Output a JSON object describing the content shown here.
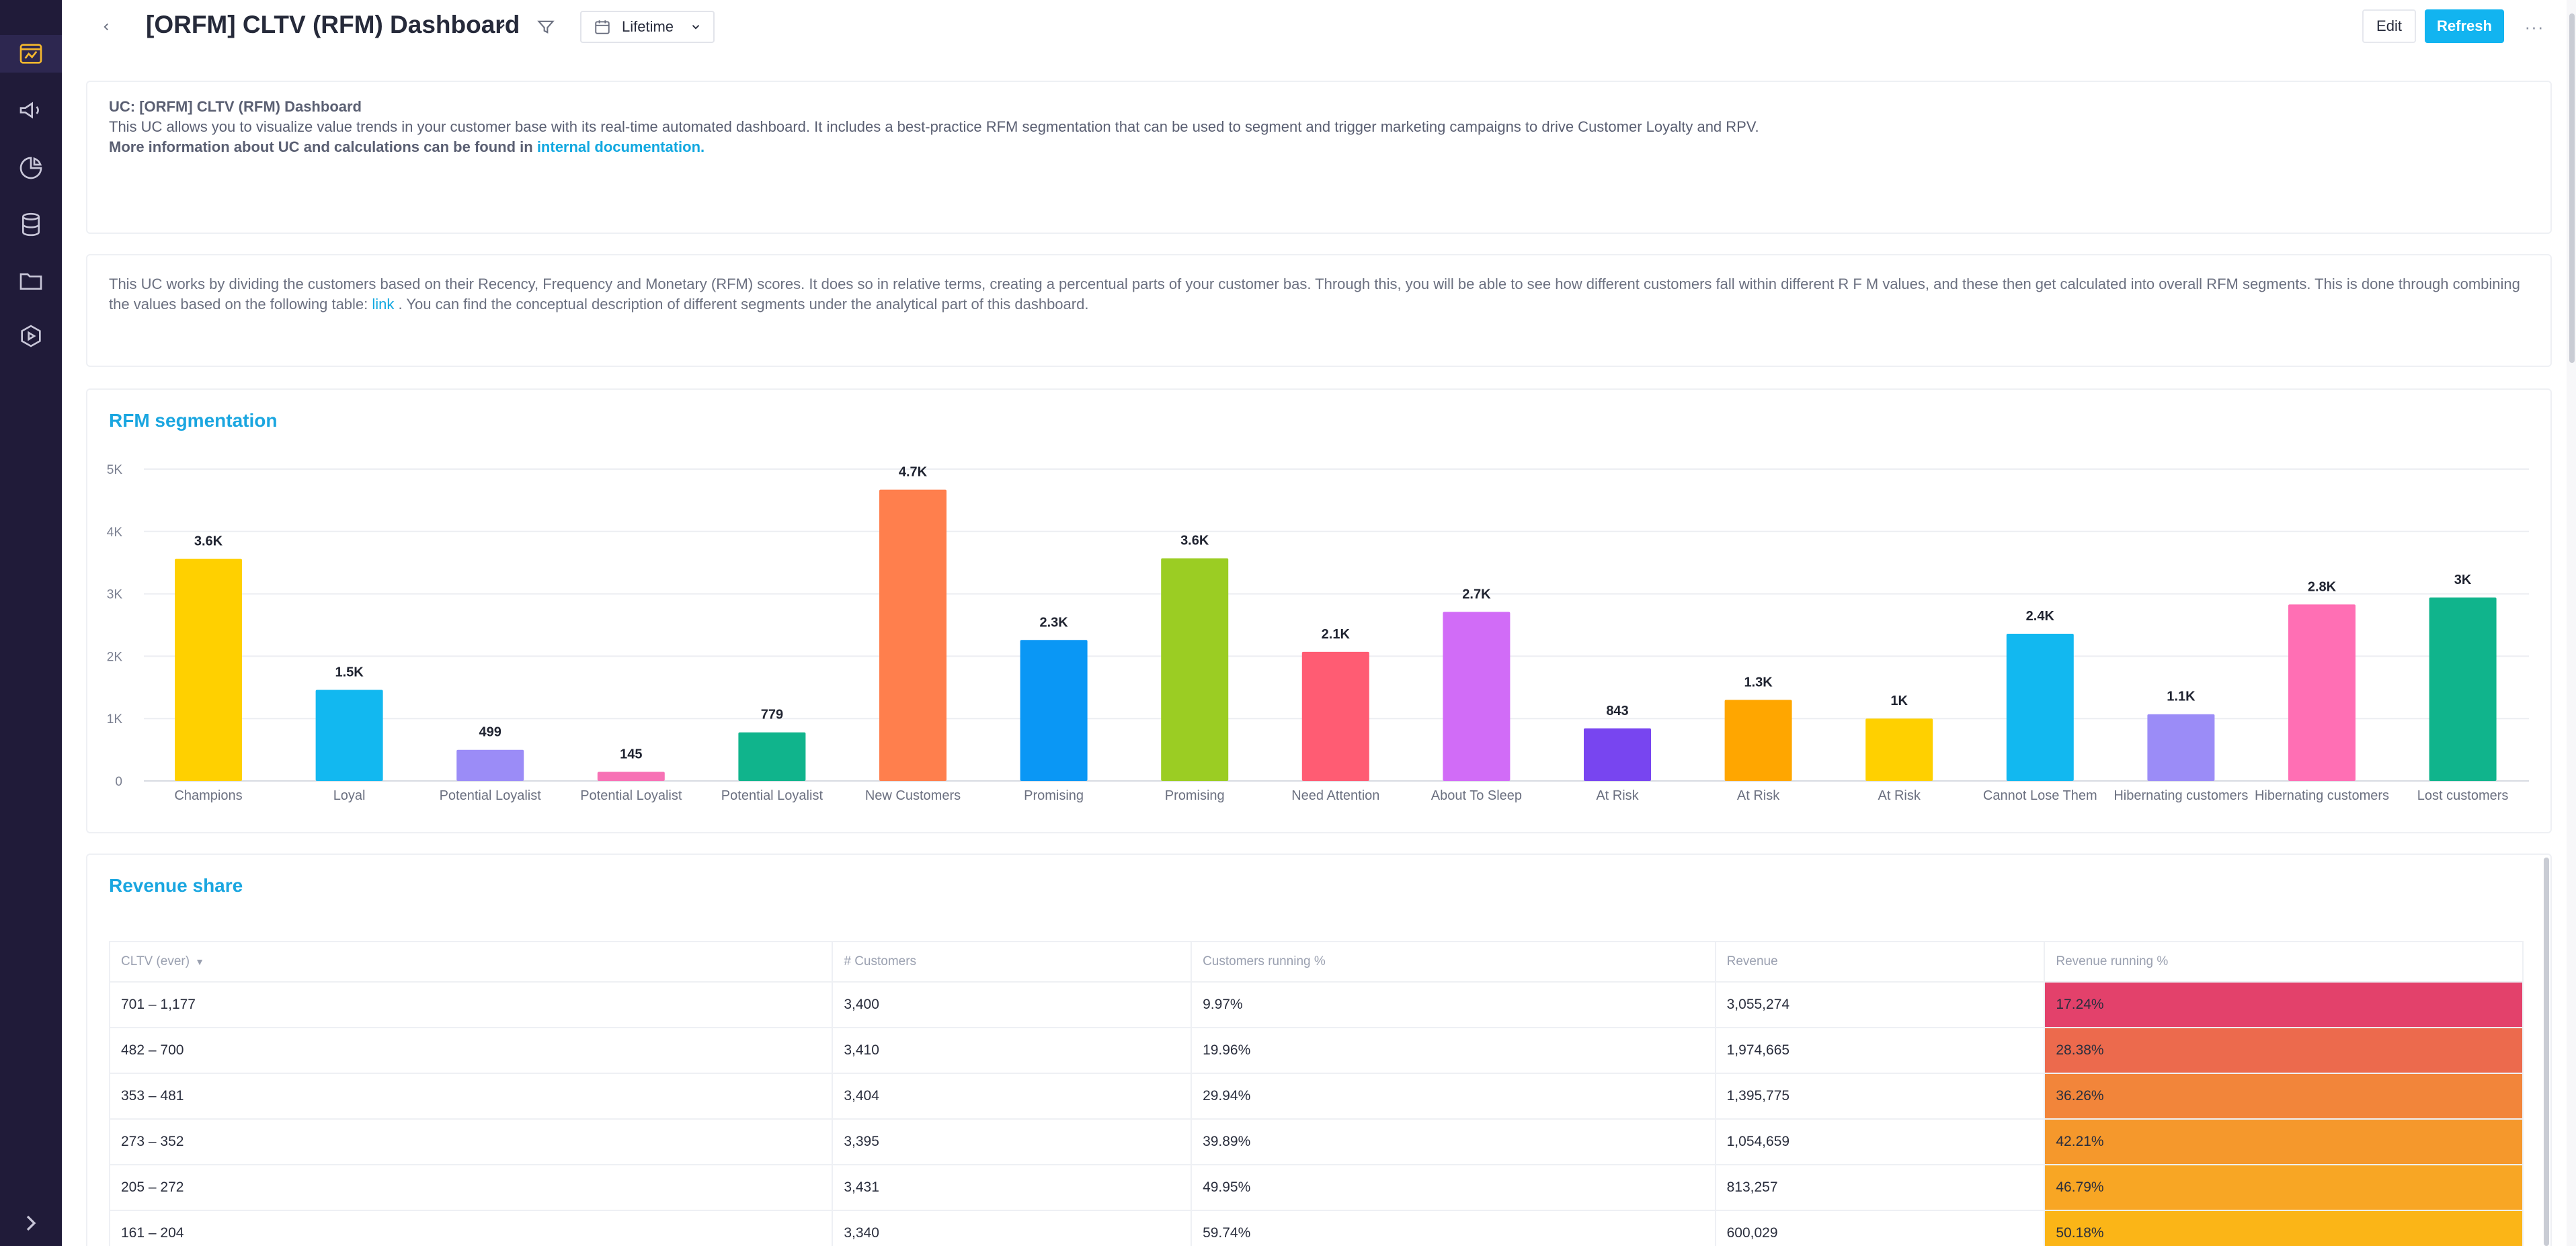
{
  "header": {
    "title": "[ORFM] CLTV (RFM) Dashboard",
    "date_range": "Lifetime",
    "edit_label": "Edit",
    "refresh_label": "Refresh",
    "more_label": "···"
  },
  "info1": {
    "heading": "UC: [ORFM] CLTV (RFM) Dashboard",
    "body": "This UC allows you to visualize value trends in your customer base with its real-time automated dashboard. It includes a best-practice RFM segmentation that can be used to segment and trigger marketing campaigns to drive Customer Loyalty and RPV.",
    "more_prefix": "More information about UC and calculations can be found in ",
    "more_link": "internal documentation."
  },
  "info2": {
    "text_before": "This UC works by dividing the customers based on their Recency, Frequency and Monetary (RFM) scores. It does so in relative terms, creating a percentual parts of your customer bas. Through this, you will be able to see how different customers fall within different R F M values, and these then get calculated into overall RFM segments. This is done through combining the values based on the following table: ",
    "link": "link",
    "text_after": " . You can find the conceptual description of different segments under the analytical part of this dashboard."
  },
  "chart_title": "RFM segmentation",
  "chart_data": {
    "type": "bar",
    "title": "RFM segmentation",
    "xlabel": "",
    "ylabel": "",
    "ylim": [
      0,
      5000
    ],
    "yticks": [
      {
        "value": 0,
        "label": "0"
      },
      {
        "value": 1000,
        "label": "1K"
      },
      {
        "value": 2000,
        "label": "2K"
      },
      {
        "value": 3000,
        "label": "3K"
      },
      {
        "value": 4000,
        "label": "4K"
      },
      {
        "value": 5000,
        "label": "5K"
      }
    ],
    "grid": true,
    "categories": [
      "Champions",
      "Loyal",
      "Potential Loyalist",
      "Potential Loyalist",
      "Potential Loyalist",
      "New Customers",
      "Promising",
      "Promising",
      "Need Attention",
      "About To Sleep",
      "At Risk",
      "At Risk",
      "At Risk",
      "Cannot Lose Them",
      "Hibernating customers",
      "Hibernating customers",
      "Lost customers"
    ],
    "values": [
      3560,
      1460,
      499,
      145,
      779,
      4670,
      2260,
      3570,
      2070,
      2710,
      843,
      1300,
      1000,
      2360,
      1070,
      2830,
      2940
    ],
    "labels": [
      "3.6K",
      "1.5K",
      "499",
      "145",
      "779",
      "4.7K",
      "2.3K",
      "3.6K",
      "2.1K",
      "2.7K",
      "843",
      "1.3K",
      "1K",
      "2.4K",
      "1.1K",
      "2.8K",
      "3K"
    ],
    "colors": [
      "#ffd000",
      "#12b8f0",
      "#9b8cf7",
      "#f772b5",
      "#10b48c",
      "#ff7f4d",
      "#0a97f5",
      "#9bcd23",
      "#ff5c73",
      "#d16cf7",
      "#7845f0",
      "#ffa600",
      "#ffd000",
      "#12b8f0",
      "#9b8cf7",
      "#ff6fb4",
      "#10b48c"
    ]
  },
  "revenue": {
    "title": "Revenue share",
    "columns": [
      "CLTV (ever)",
      "# Customers",
      "Customers running %",
      "Revenue",
      "Revenue running %"
    ],
    "rows": [
      {
        "cltv": "701 – 1,177",
        "customers": "3,400",
        "cust_pct": "9.97%",
        "revenue": "3,055,274",
        "rev_pct": "17.24%",
        "color": "#e3416b"
      },
      {
        "cltv": "482 – 700",
        "customers": "3,410",
        "cust_pct": "19.96%",
        "revenue": "1,974,665",
        "rev_pct": "28.38%",
        "color": "#ec6a4d"
      },
      {
        "cltv": "353 – 481",
        "customers": "3,404",
        "cust_pct": "29.94%",
        "revenue": "1,395,775",
        "rev_pct": "36.26%",
        "color": "#f2853a"
      },
      {
        "cltv": "273 – 352",
        "customers": "3,395",
        "cust_pct": "39.89%",
        "revenue": "1,054,659",
        "rev_pct": "42.21%",
        "color": "#f5982c"
      },
      {
        "cltv": "205 – 272",
        "customers": "3,431",
        "cust_pct": "49.95%",
        "revenue": "813,257",
        "rev_pct": "46.79%",
        "color": "#f8a624"
      },
      {
        "cltv": "161 – 204",
        "customers": "3,340",
        "cust_pct": "59.74%",
        "revenue": "600,029",
        "rev_pct": "50.18%",
        "color": "#fbb517"
      }
    ]
  }
}
